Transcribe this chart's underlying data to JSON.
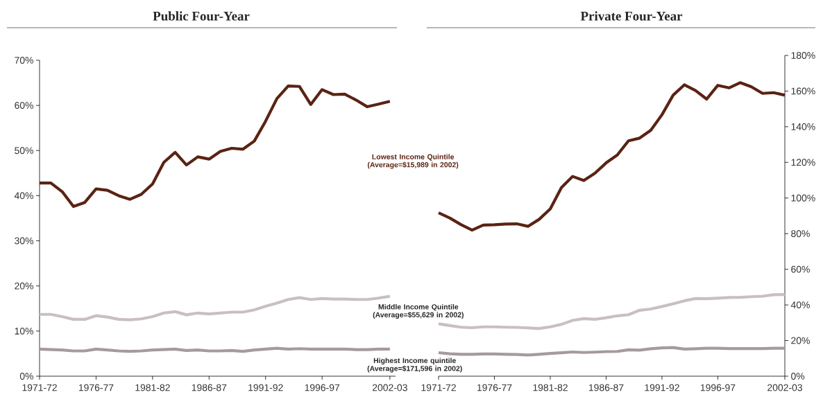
{
  "chart_data": [
    {
      "type": "line",
      "title": "Public Four-Year",
      "categories": [
        "1971-72",
        null,
        null,
        null,
        null,
        "1976-77",
        null,
        null,
        null,
        null,
        "1981-82",
        null,
        null,
        null,
        null,
        "1986-87",
        null,
        null,
        null,
        null,
        "1991-92",
        null,
        null,
        null,
        null,
        "1996-97",
        null,
        null,
        null,
        null,
        null,
        "2002-03"
      ],
      "series": [
        {
          "name": "Lowest Income Quintile\n(Average=$15,989 in 2002)",
          "color": "#5a2314",
          "values": [
            42.8,
            42.8,
            40.9,
            37.6,
            38.5,
            41.5,
            41.2,
            40.0,
            39.2,
            40.3,
            42.6,
            47.4,
            49.6,
            46.8,
            48.6,
            48.1,
            49.8,
            50.5,
            50.3,
            52.1,
            56.5,
            61.5,
            64.3,
            64.2,
            60.2,
            63.5,
            62.4,
            62.5,
            61.2,
            59.7,
            60.3,
            60.9
          ]
        },
        {
          "name": "Middle Income Quintile\n(Average=$55,629 in 2002)",
          "color": "#c9bfc3",
          "values": [
            13.7,
            13.7,
            13.2,
            12.6,
            12.6,
            13.4,
            13.1,
            12.6,
            12.5,
            12.7,
            13.2,
            14.0,
            14.3,
            13.6,
            14.0,
            13.8,
            14.0,
            14.2,
            14.2,
            14.7,
            15.5,
            16.2,
            17.0,
            17.4,
            17.0,
            17.2,
            17.1,
            17.1,
            17.0,
            17.0,
            17.3,
            17.7
          ]
        },
        {
          "name": "Highest Income quintile\n(Average=$171,596 in 2002)",
          "color": "#a59a9c",
          "values": [
            6.0,
            5.9,
            5.8,
            5.6,
            5.6,
            6.0,
            5.8,
            5.6,
            5.5,
            5.6,
            5.8,
            5.9,
            6.0,
            5.7,
            5.8,
            5.6,
            5.6,
            5.7,
            5.5,
            5.8,
            6.0,
            6.2,
            6.0,
            6.1,
            6.0,
            6.0,
            6.0,
            6.0,
            5.9,
            5.9,
            6.0,
            6.0
          ]
        }
      ],
      "ylim": [
        0,
        70
      ],
      "yticks": [
        {
          "value": 0,
          "label": "0%"
        },
        {
          "value": 10,
          "label": "10%"
        },
        {
          "value": 20,
          "label": "20%"
        },
        {
          "value": 30,
          "label": "30%"
        },
        {
          "value": 40,
          "label": "40%"
        },
        {
          "value": 50,
          "label": "50%"
        },
        {
          "value": 60,
          "label": "60%"
        },
        {
          "value": 70,
          "label": "70%"
        }
      ],
      "grid": false
    },
    {
      "type": "line",
      "title": "Private Four-Year",
      "categories": [
        "1971-72",
        null,
        null,
        null,
        null,
        "1976-77",
        null,
        null,
        null,
        null,
        "1981-82",
        null,
        null,
        null,
        null,
        "1986-87",
        null,
        null,
        null,
        null,
        "1991-92",
        null,
        null,
        null,
        null,
        "1996-97",
        null,
        null,
        null,
        null,
        null,
        "2002-03"
      ],
      "series": [
        {
          "color": "#5a2314",
          "values": [
            91.7,
            88.8,
            85.1,
            82.0,
            84.8,
            85.0,
            85.4,
            85.5,
            84.1,
            88.0,
            93.9,
            105.8,
            112.1,
            109.8,
            113.9,
            119.7,
            124.1,
            132.1,
            133.6,
            138.0,
            146.7,
            157.7,
            163.5,
            160.3,
            155.5,
            163.2,
            161.8,
            164.7,
            162.4,
            158.7,
            159.1,
            157.7
          ]
        },
        {
          "color": "#c9bfc3",
          "values": [
            29.4,
            28.4,
            27.5,
            27.2,
            27.7,
            27.7,
            27.5,
            27.4,
            27.1,
            26.8,
            27.7,
            29.1,
            31.3,
            32.3,
            31.9,
            32.8,
            33.9,
            34.5,
            37.0,
            37.7,
            39.1,
            40.6,
            42.3,
            43.6,
            43.5,
            43.8,
            44.2,
            44.3,
            44.6,
            44.9,
            45.7,
            45.8
          ]
        },
        {
          "color": "#a59a9c",
          "values": [
            13.2,
            12.6,
            12.3,
            12.3,
            12.5,
            12.5,
            12.3,
            12.2,
            11.9,
            12.3,
            12.8,
            13.2,
            13.6,
            13.3,
            13.5,
            13.8,
            13.9,
            14.8,
            14.6,
            15.4,
            15.9,
            16.1,
            15.2,
            15.4,
            15.7,
            15.7,
            15.5,
            15.5,
            15.5,
            15.5,
            15.7,
            15.7
          ]
        }
      ],
      "ylim": [
        0,
        180
      ],
      "yticks": [
        {
          "value": 0,
          "label": "0%"
        },
        {
          "value": 20,
          "label": "20%"
        },
        {
          "value": 40,
          "label": "40%"
        },
        {
          "value": 60,
          "label": "60%"
        },
        {
          "value": 80,
          "label": "80%"
        },
        {
          "value": 100,
          "label": "100%"
        },
        {
          "value": 120,
          "label": "120%"
        },
        {
          "value": 140,
          "label": "140%"
        },
        {
          "value": 160,
          "label": "160%"
        },
        {
          "value": 180,
          "label": "180%"
        }
      ],
      "grid": false
    }
  ]
}
